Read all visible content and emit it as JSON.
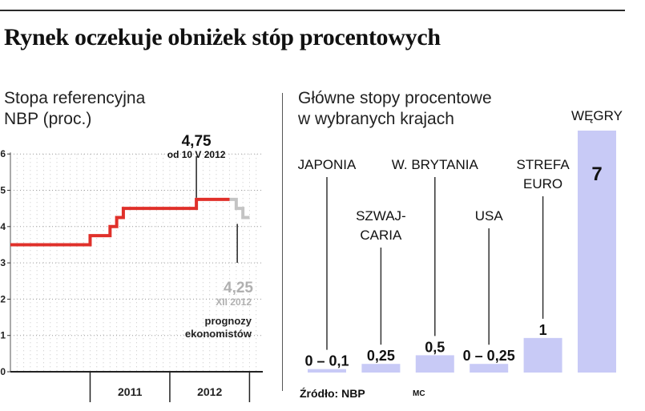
{
  "title": "Rynek oczekuje obniżek stóp procentowych",
  "left_panel": {
    "subtitle_line1": "Stopa referencyjna",
    "subtitle_line2": "NBP (proc.)"
  },
  "right_panel": {
    "subtitle_line1": "Główne stopy procentowe",
    "subtitle_line2": "w wybranych krajach"
  },
  "source": "Źródło: NBP",
  "credit": "MC",
  "chart_data": [
    {
      "type": "line",
      "ylim": [
        0,
        6
      ],
      "yticks": [
        0,
        1,
        2,
        3,
        4,
        5,
        6
      ],
      "xticks": [
        "2011",
        "2012"
      ],
      "x_range": [
        "2010-01",
        "2013-03"
      ],
      "series": [
        {
          "style": "step",
          "color": "#e0302a",
          "points": [
            {
              "x": "2010-01",
              "y": 3.5
            },
            {
              "x": "2011-01",
              "y": 3.75
            },
            {
              "x": "2011-04",
              "y": 4.0
            },
            {
              "x": "2011-05",
              "y": 4.25
            },
            {
              "x": "2011-06",
              "y": 4.5
            },
            {
              "x": "2012-05",
              "y": 4.75
            },
            {
              "x": "2012-10",
              "y": 4.75
            }
          ]
        },
        {
          "style": "step",
          "color": "#c4c4c4",
          "points": [
            {
              "x": "2012-10",
              "y": 4.75
            },
            {
              "x": "2012-11",
              "y": 4.5
            },
            {
              "x": "2012-12",
              "y": 4.25
            },
            {
              "x": "2013-01",
              "y": 4.25
            }
          ]
        }
      ],
      "annotations": [
        {
          "value": "4,75",
          "text": "od 10 V 2012"
        },
        {
          "value": "4,25",
          "text": "XII 2012"
        },
        {
          "line1": "prognozy",
          "line2": "ekonomistów"
        }
      ]
    },
    {
      "type": "bar",
      "categories": [
        "JAPONIA",
        "SZWAJ-CARIA",
        "W. BRYTANIA",
        "USA",
        "STREFA EURO",
        "WĘGRY"
      ],
      "category_lines": [
        [
          "JAPONIA"
        ],
        [
          "SZWAJ-",
          "CARIA"
        ],
        [
          "W. BRYTANIA"
        ],
        [
          "USA"
        ],
        [
          "STREFA",
          "EURO"
        ],
        [
          "WĘGRY"
        ]
      ],
      "values": [
        0.1,
        0.25,
        0.5,
        0.25,
        1,
        7
      ],
      "value_labels": [
        "0 – 0,1",
        "0,25",
        "0,5",
        "0 – 0,25",
        "1",
        "7"
      ],
      "ylim": [
        0,
        7
      ],
      "color": "#c8caf6"
    }
  ]
}
